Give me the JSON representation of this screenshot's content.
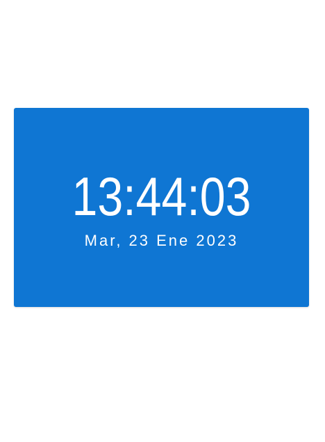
{
  "clock": {
    "time": "13:44:03",
    "date": "Mar, 23 Ene 2023"
  },
  "colors": {
    "card_background": "#0f76d3",
    "text": "#ffffff",
    "page_background": "#ffffff"
  }
}
